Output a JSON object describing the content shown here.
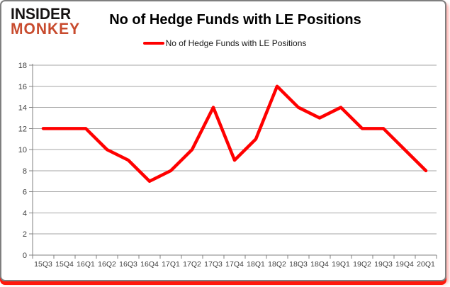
{
  "logo": {
    "line1": "INSIDER",
    "line2": "MONKEY",
    "line1_color": "#171414",
    "line2_color": "#c84b2e"
  },
  "header": {
    "title": "No of Hedge Funds with LE Positions"
  },
  "legend": {
    "label": "No of Hedge Funds with LE Positions",
    "swatch_color": "#ff0000"
  },
  "chart_data": {
    "type": "line",
    "title": "No of Hedge Funds with LE Positions",
    "categories": [
      "15Q3",
      "15Q4",
      "16Q1",
      "16Q2",
      "16Q3",
      "16Q4",
      "17Q1",
      "17Q2",
      "17Q3",
      "17Q4",
      "18Q1",
      "18Q2",
      "18Q3",
      "18Q4",
      "19Q1",
      "19Q2",
      "19Q3",
      "19Q4",
      "20Q1"
    ],
    "series": [
      {
        "name": "No of Hedge Funds with LE Positions",
        "color": "#ff0000",
        "values": [
          12,
          12,
          12,
          10,
          9,
          7,
          8,
          10,
          14,
          9,
          11,
          16,
          14,
          13,
          14,
          12,
          12,
          10,
          8
        ]
      }
    ],
    "xlabel": "",
    "ylabel": "",
    "ylim": [
      0,
      18
    ],
    "yticks": [
      0,
      2,
      4,
      6,
      8,
      10,
      12,
      14,
      16,
      18
    ],
    "grid": true,
    "legend_position": "top",
    "gridline_color": "#a6a6a6",
    "axis_color": "#808080",
    "tick_label_color": "#3f3f3f"
  },
  "frame": {
    "border_color": "#7f7f7f",
    "accent_color": "#ff190d",
    "background": "#ffffff"
  }
}
